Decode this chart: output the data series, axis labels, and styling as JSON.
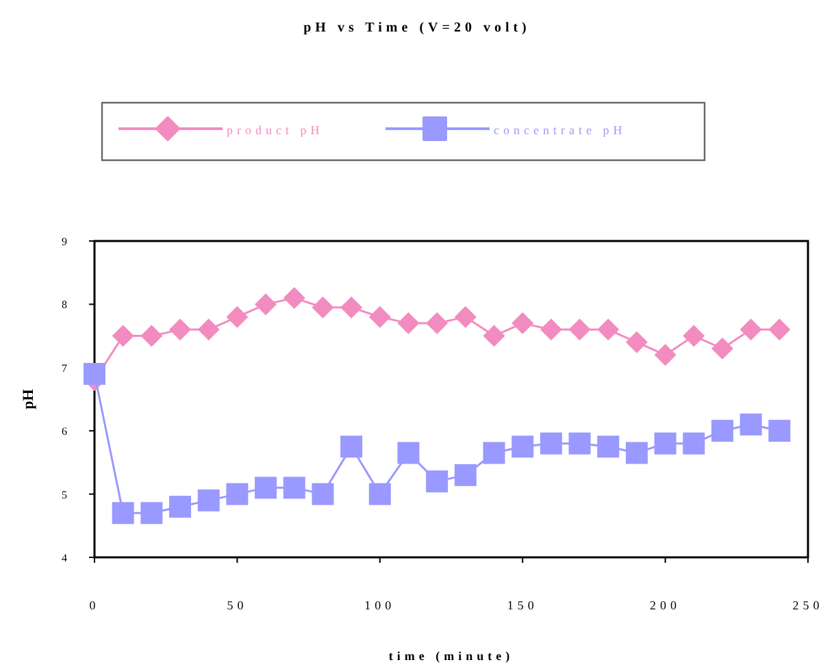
{
  "chart_data": {
    "type": "line",
    "title": "pH vs Time (V=20 volt)",
    "xlabel": "time (minute)",
    "ylabel": "pH",
    "x": [
      0,
      10,
      20,
      30,
      40,
      50,
      60,
      70,
      80,
      90,
      100,
      110,
      120,
      130,
      140,
      150,
      160,
      170,
      180,
      190,
      200,
      210,
      220,
      230,
      240
    ],
    "series": [
      {
        "name": "product pH",
        "color": "#f28cc0",
        "marker": "diamond",
        "values": [
          6.8,
          7.5,
          7.5,
          7.6,
          7.6,
          7.8,
          8.0,
          8.1,
          7.95,
          7.95,
          7.8,
          7.7,
          7.7,
          7.8,
          7.5,
          7.7,
          7.6,
          7.6,
          7.6,
          7.4,
          7.2,
          7.5,
          7.3,
          7.6,
          7.6
        ]
      },
      {
        "name": "concentrate pH",
        "color": "#9999ff",
        "marker": "square",
        "values": [
          6.9,
          4.7,
          4.7,
          4.8,
          4.9,
          5.0,
          5.1,
          5.1,
          5.0,
          5.75,
          5.0,
          5.65,
          5.2,
          5.3,
          5.65,
          5.75,
          5.8,
          5.8,
          5.75,
          5.65,
          5.8,
          5.8,
          6.0,
          6.1,
          6.0
        ]
      }
    ],
    "xlim": [
      0,
      250
    ],
    "xticks": [
      0,
      50,
      100,
      150,
      200,
      250
    ],
    "ylim": [
      4,
      9
    ],
    "yticks": [
      4,
      5,
      6,
      7,
      8,
      9
    ],
    "grid": false,
    "legend": "top"
  }
}
